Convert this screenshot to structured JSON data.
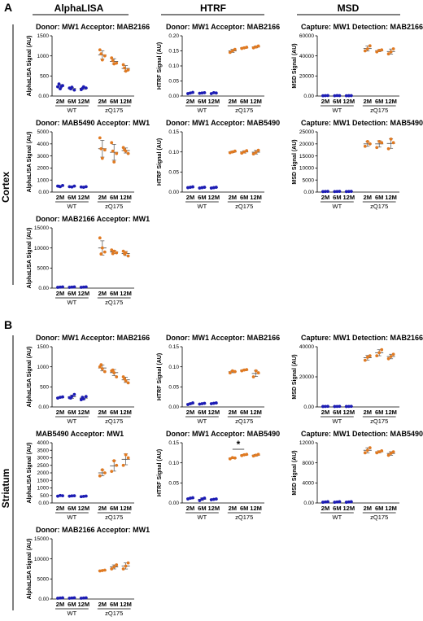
{
  "panels": [
    {
      "letter": "A",
      "region": "Cortex"
    },
    {
      "letter": "B",
      "region": "Striatum"
    }
  ],
  "columns": [
    "AlphaLISA",
    "HTRF",
    "MSD"
  ],
  "colors": {
    "WT": "#1c1cb4",
    "zQ175": "#e07a22",
    "errorbar": "#555555"
  },
  "x_ticks": [
    "2M",
    "6M",
    "12M",
    "2M",
    "6M",
    "12M"
  ],
  "groups": [
    "WT",
    "zQ175"
  ],
  "chart_data": [
    {
      "type": "scatter",
      "panel": "A",
      "column": "AlphaLISA",
      "title": "Donor: MW1 Acceptor: MAB2166",
      "ylabel": "AlphaLISA Signal (AU)",
      "ylim": [
        0,
        1500
      ],
      "yticks": [
        0,
        500,
        1000,
        1500
      ],
      "groups": [
        {
          "label": "2M WT",
          "points": [
            230,
            260,
            180,
            300,
            240
          ]
        },
        {
          "label": "6M WT",
          "points": [
            200,
            150,
            220,
            180
          ]
        },
        {
          "label": "12M WT",
          "points": [
            160,
            200,
            230,
            190
          ]
        },
        {
          "label": "2M zQ175",
          "points": [
            1150,
            1000,
            900,
            1050
          ]
        },
        {
          "label": "6M zQ175",
          "points": [
            950,
            820,
            800,
            880
          ]
        },
        {
          "label": "12M zQ175",
          "points": [
            780,
            650,
            620,
            700
          ]
        }
      ]
    },
    {
      "type": "scatter",
      "panel": "A",
      "column": "HTRF",
      "title": "Donor: MW1 Acceptor: MAB2166",
      "ylabel": "HTRF Signal (AU)",
      "ylim": [
        0,
        0.2
      ],
      "yticks": [
        0.0,
        0.05,
        0.1,
        0.15,
        0.2
      ],
      "groups": [
        {
          "label": "2M WT",
          "points": [
            0.008,
            0.012,
            0.01
          ]
        },
        {
          "label": "6M WT",
          "points": [
            0.009,
            0.011,
            0.01
          ]
        },
        {
          "label": "12M WT",
          "points": [
            0.008,
            0.01,
            0.011
          ]
        },
        {
          "label": "2M zQ175",
          "points": [
            0.145,
            0.155,
            0.15
          ]
        },
        {
          "label": "6M zQ175",
          "points": [
            0.158,
            0.162,
            0.16
          ]
        },
        {
          "label": "12M zQ175",
          "points": [
            0.16,
            0.166,
            0.163
          ]
        }
      ]
    },
    {
      "type": "scatter",
      "panel": "A",
      "column": "MSD",
      "title": "Capture: MW1 Detection: MAB2166",
      "ylabel": "MSD Signal (AU)",
      "ylim": [
        0,
        60000
      ],
      "yticks": [
        0,
        20000,
        40000,
        60000
      ],
      "groups": [
        {
          "label": "2M WT",
          "points": [
            300,
            500,
            400
          ]
        },
        {
          "label": "6M WT",
          "points": [
            300,
            400,
            500
          ]
        },
        {
          "label": "12M WT",
          "points": [
            300,
            400,
            350
          ]
        },
        {
          "label": "2M zQ175",
          "points": [
            45000,
            50000,
            47000
          ]
        },
        {
          "label": "6M zQ175",
          "points": [
            44000,
            46000,
            45500
          ]
        },
        {
          "label": "12M zQ175",
          "points": [
            42000,
            47000,
            44000
          ]
        }
      ]
    },
    {
      "type": "scatter",
      "panel": "A",
      "column": "AlphaLISA",
      "title": "Donor: MAB5490 Acceptor: MW1",
      "ylabel": "AlphaLISA Signal (AU)",
      "ylim": [
        0,
        5000
      ],
      "yticks": [
        0,
        1000,
        2000,
        3000,
        4000,
        5000
      ],
      "groups": [
        {
          "label": "2M WT",
          "points": [
            500,
            550,
            450,
            480
          ]
        },
        {
          "label": "6M WT",
          "points": [
            450,
            500,
            420
          ]
        },
        {
          "label": "12M WT",
          "points": [
            420,
            450,
            400
          ]
        },
        {
          "label": "2M zQ175",
          "points": [
            4500,
            3500,
            2800,
            3600
          ]
        },
        {
          "label": "6M zQ175",
          "points": [
            4100,
            3200,
            2500,
            3400
          ]
        },
        {
          "label": "12M zQ175",
          "points": [
            3700,
            3200,
            3400,
            3500
          ]
        }
      ]
    },
    {
      "type": "scatter",
      "panel": "A",
      "column": "HTRF",
      "title": "Donor: MW1 Acceptor: MAB5490",
      "ylabel": "HTRF Signal (AU)",
      "ylim": [
        0,
        0.15
      ],
      "yticks": [
        0.0,
        0.05,
        0.1,
        0.15
      ],
      "groups": [
        {
          "label": "2M WT",
          "points": [
            0.011,
            0.013,
            0.012
          ]
        },
        {
          "label": "6M WT",
          "points": [
            0.01,
            0.012,
            0.011
          ]
        },
        {
          "label": "12M WT",
          "points": [
            0.01,
            0.012,
            0.011
          ]
        },
        {
          "label": "2M zQ175",
          "points": [
            0.098,
            0.102,
            0.1
          ]
        },
        {
          "label": "6M zQ175",
          "points": [
            0.097,
            0.103,
            0.1
          ]
        },
        {
          "label": "12M zQ175",
          "points": [
            0.095,
            0.104,
            0.099
          ]
        }
      ]
    },
    {
      "type": "scatter",
      "panel": "A",
      "column": "MSD",
      "title": "Capture: MW1 Detection: MAB5490",
      "ylabel": "MSD Signal (AU)",
      "ylim": [
        0,
        25000
      ],
      "yticks": [
        0,
        5000,
        10000,
        15000,
        20000,
        25000
      ],
      "groups": [
        {
          "label": "2M WT",
          "points": [
            200,
            300,
            250
          ]
        },
        {
          "label": "6M WT",
          "points": [
            200,
            300,
            250
          ]
        },
        {
          "label": "12M WT",
          "points": [
            200,
            300,
            250
          ]
        },
        {
          "label": "2M zQ175",
          "points": [
            19000,
            20000,
            21000
          ]
        },
        {
          "label": "6M zQ175",
          "points": [
            18500,
            20500,
            21000
          ]
        },
        {
          "label": "12M zQ175",
          "points": [
            18000,
            20500,
            22000
          ]
        }
      ]
    },
    {
      "type": "scatter",
      "panel": "A",
      "column": "AlphaLISA",
      "title": "Donor: MAB2166 Acceptor: MW1",
      "ylabel": "AlphaLISA Signal (AU)",
      "ylim": [
        0,
        15000
      ],
      "yticks": [
        0,
        5000,
        10000,
        15000
      ],
      "groups": [
        {
          "label": "2M WT",
          "points": [
            200,
            300,
            250
          ]
        },
        {
          "label": "6M WT",
          "points": [
            200,
            300,
            250
          ]
        },
        {
          "label": "12M WT",
          "points": [
            200,
            300,
            250
          ]
        },
        {
          "label": "2M zQ175",
          "points": [
            12500,
            9000,
            10000,
            8500
          ]
        },
        {
          "label": "6M zQ175",
          "points": [
            9500,
            8800,
            9200,
            8600
          ]
        },
        {
          "label": "12M zQ175",
          "points": [
            9200,
            8000,
            8800,
            8500
          ]
        }
      ]
    },
    {
      "type": "scatter",
      "panel": "B",
      "column": "AlphaLISA",
      "title": "Donor: MW1 Acceptor: MAB2166",
      "ylabel": "AlphaLISA Signal (AU)",
      "ylim": [
        0,
        1500
      ],
      "yticks": [
        0,
        500,
        1000,
        1500
      ],
      "groups": [
        {
          "label": "2M WT",
          "points": [
            220,
            250,
            240
          ]
        },
        {
          "label": "6M WT",
          "points": [
            230,
            310,
            260,
            220
          ]
        },
        {
          "label": "12M WT",
          "points": [
            180,
            260,
            200,
            240
          ]
        },
        {
          "label": "2M zQ175",
          "points": [
            1000,
            880,
            950,
            1050
          ]
        },
        {
          "label": "6M zQ175",
          "points": [
            900,
            750,
            850,
            920
          ]
        },
        {
          "label": "12M zQ175",
          "points": [
            750,
            600,
            650,
            700
          ]
        }
      ]
    },
    {
      "type": "scatter",
      "panel": "B",
      "column": "HTRF",
      "title": "Donor: MW1 Acceptor: MAB2166",
      "ylabel": "HTRF Signal (AU)",
      "ylim": [
        0,
        0.15
      ],
      "yticks": [
        0.0,
        0.05,
        0.1,
        0.15
      ],
      "groups": [
        {
          "label": "2M WT",
          "points": [
            0.006,
            0.01,
            0.008
          ]
        },
        {
          "label": "6M WT",
          "points": [
            0.007,
            0.009,
            0.008
          ]
        },
        {
          "label": "12M WT",
          "points": [
            0.008,
            0.01,
            0.009
          ]
        },
        {
          "label": "2M zQ175",
          "points": [
            0.085,
            0.088,
            0.09
          ]
        },
        {
          "label": "6M zQ175",
          "points": [
            0.09,
            0.093,
            0.092
          ]
        },
        {
          "label": "12M zQ175",
          "points": [
            0.075,
            0.085,
            0.09
          ]
        }
      ]
    },
    {
      "type": "scatter",
      "panel": "B",
      "column": "MSD",
      "title": "Capture: MW1 Detection: MAB2166",
      "ylabel": "MSD Signal (AU)",
      "ylim": [
        0,
        40000
      ],
      "yticks": [
        0,
        20000,
        40000
      ],
      "groups": [
        {
          "label": "2M WT",
          "points": [
            300,
            400,
            350
          ]
        },
        {
          "label": "6M WT",
          "points": [
            300,
            400,
            350
          ]
        },
        {
          "label": "12M WT",
          "points": [
            300,
            400,
            350
          ]
        },
        {
          "label": "2M zQ175",
          "points": [
            31000,
            34000,
            33000
          ]
        },
        {
          "label": "6M zQ175",
          "points": [
            34000,
            38000,
            36000
          ]
        },
        {
          "label": "12M zQ175",
          "points": [
            32000,
            35000,
            33500
          ]
        }
      ]
    },
    {
      "type": "scatter",
      "panel": "B",
      "column": "AlphaLISA",
      "title": "MAB5490 Acceptor: MW1",
      "ylabel": "AlphaLISA Signal (AU)",
      "ylim": [
        0,
        4000
      ],
      "yticks": [
        0,
        500,
        1000,
        1500,
        2000,
        2500,
        3000,
        3500,
        4000
      ],
      "groups": [
        {
          "label": "2M WT",
          "points": [
            450,
            480,
            500
          ]
        },
        {
          "label": "6M WT",
          "points": [
            450,
            480,
            470
          ]
        },
        {
          "label": "12M WT",
          "points": [
            420,
            460,
            440
          ]
        },
        {
          "label": "2M zQ175",
          "points": [
            1800,
            2000,
            2200
          ]
        },
        {
          "label": "6M zQ175",
          "points": [
            2100,
            2500,
            2800
          ]
        },
        {
          "label": "12M zQ175",
          "points": [
            2500,
            3000,
            3200
          ]
        }
      ]
    },
    {
      "type": "scatter",
      "panel": "B",
      "column": "HTRF",
      "title": "Donor: MW1 Acceptor: MAB5490",
      "ylabel": "HTRF Signal (AU)",
      "ylim": [
        0,
        0.15
      ],
      "yticks": [
        0.0,
        0.05,
        0.1,
        0.15
      ],
      "annotation": "*",
      "groups": [
        {
          "label": "2M WT",
          "points": [
            0.01,
            0.013,
            0.012
          ]
        },
        {
          "label": "6M WT",
          "points": [
            0.006,
            0.012,
            0.01
          ]
        },
        {
          "label": "12M WT",
          "points": [
            0.008,
            0.01,
            0.009
          ]
        },
        {
          "label": "2M zQ175",
          "points": [
            0.11,
            0.112,
            0.113
          ]
        },
        {
          "label": "6M zQ175",
          "points": [
            0.118,
            0.121,
            0.12
          ]
        },
        {
          "label": "12M zQ175",
          "points": [
            0.117,
            0.121,
            0.119
          ]
        }
      ]
    },
    {
      "type": "scatter",
      "panel": "B",
      "column": "MSD",
      "title": "Capture: MW1 Detection: MAB5490",
      "ylabel": "MSD Signal (AU)",
      "ylim": [
        0,
        12000
      ],
      "yticks": [
        0,
        4000,
        8000,
        12000
      ],
      "groups": [
        {
          "label": "2M WT",
          "points": [
            150,
            250,
            200
          ]
        },
        {
          "label": "6M WT",
          "points": [
            150,
            250,
            200
          ]
        },
        {
          "label": "12M WT",
          "points": [
            150,
            250,
            200
          ]
        },
        {
          "label": "2M zQ175",
          "points": [
            10000,
            11000,
            10500
          ]
        },
        {
          "label": "6M zQ175",
          "points": [
            10000,
            10400,
            10200
          ]
        },
        {
          "label": "12M zQ175",
          "points": [
            9500,
            10200,
            9900
          ]
        }
      ]
    },
    {
      "type": "scatter",
      "panel": "B",
      "column": "AlphaLISA",
      "title": "Donor: MAB2166 Acceptor: MW1",
      "ylabel": "AlphaLISA Signal (AU)",
      "ylim": [
        0,
        15000
      ],
      "yticks": [
        0,
        5000,
        10000,
        15000
      ],
      "groups": [
        {
          "label": "2M WT",
          "points": [
            200,
            300,
            250
          ]
        },
        {
          "label": "6M WT",
          "points": [
            200,
            300,
            250
          ]
        },
        {
          "label": "12M WT",
          "points": [
            200,
            300,
            250
          ]
        },
        {
          "label": "2M zQ175",
          "points": [
            7000,
            7200,
            7100
          ]
        },
        {
          "label": "6M zQ175",
          "points": [
            7500,
            8500,
            8000
          ]
        },
        {
          "label": "12M zQ175",
          "points": [
            7500,
            9000,
            8200
          ]
        }
      ]
    }
  ]
}
